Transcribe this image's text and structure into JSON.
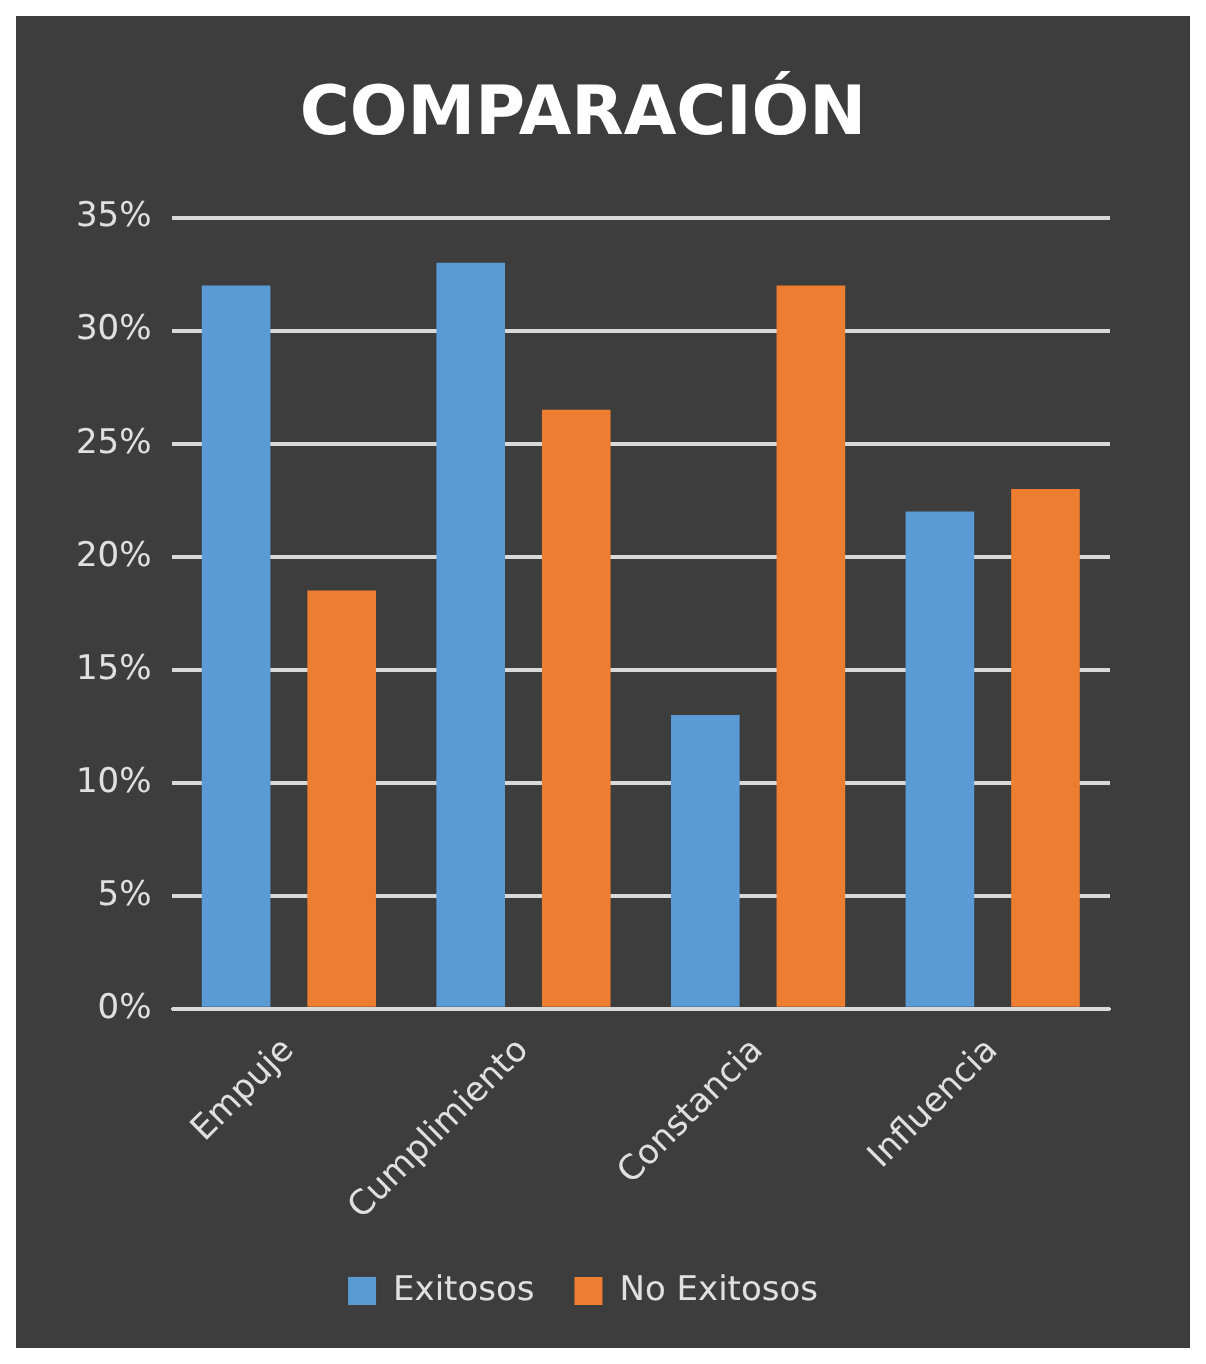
{
  "chart_data": {
    "type": "bar",
    "title": "COMPARACIÓN",
    "categories": [
      "Empuje",
      "Cumplimiento",
      "Constancia",
      "Influencia"
    ],
    "series": [
      {
        "name": "Exitosos",
        "color": "#5b9bd5",
        "values": [
          32,
          33,
          13,
          22
        ]
      },
      {
        "name": "No Exitosos",
        "color": "#ed7d31",
        "values": [
          18.5,
          26.5,
          32,
          23
        ]
      }
    ],
    "ylim": [
      0,
      35
    ],
    "yticks": [
      {
        "value": 0,
        "label": "0%"
      },
      {
        "value": 5,
        "label": "5%"
      },
      {
        "value": 10,
        "label": "10%"
      },
      {
        "value": 15,
        "label": "15%"
      },
      {
        "value": 20,
        "label": "20%"
      },
      {
        "value": 25,
        "label": "25%"
      },
      {
        "value": 30,
        "label": "30%"
      },
      {
        "value": 35,
        "label": "35%"
      }
    ],
    "grid": "y",
    "legend": "bottom"
  }
}
